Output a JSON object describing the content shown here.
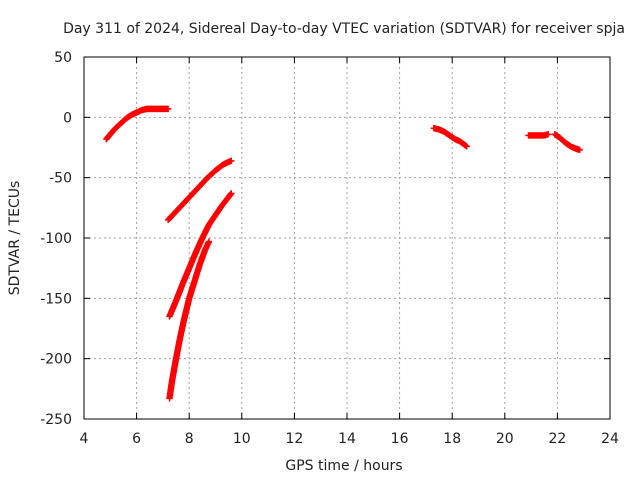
{
  "chart_data": {
    "type": "scatter",
    "title": "Day 311 of 2024, Sidereal Day-to-day VTEC variation (SDTVAR) for receiver spja",
    "xlabel": "GPS time / hours",
    "ylabel": "SDTVAR / TECUs",
    "xlim": [
      4,
      24
    ],
    "ylim": [
      -250,
      50
    ],
    "xticks": [
      4,
      6,
      8,
      10,
      12,
      14,
      16,
      18,
      20,
      22,
      24
    ],
    "yticks": [
      -250,
      -200,
      -150,
      -100,
      -50,
      0,
      50
    ],
    "grid": true,
    "legend": "none",
    "marker": "plus",
    "color": "#ff0000",
    "series": [
      {
        "segments": [
          {
            "x": [
              4.85,
              5.0,
              5.2,
              5.4,
              5.6,
              5.8,
              6.0,
              6.2,
              6.4,
              6.6,
              6.8,
              7.0,
              7.2
            ],
            "y": [
              -18,
              -14,
              -9,
              -5,
              -1,
              2,
              4,
              6,
              7,
              7,
              7,
              7,
              7
            ]
          },
          {
            "x": [
              7.2,
              7.5,
              7.8,
              8.1,
              8.4,
              8.7,
              9.0,
              9.3,
              9.6
            ],
            "y": [
              -85,
              -78,
              -71,
              -64,
              -57,
              -50,
              -44,
              -39,
              -36
            ]
          },
          {
            "x": [
              7.25,
              7.5,
              7.75,
              8.0,
              8.25,
              8.5,
              8.75,
              9.0,
              9.25,
              9.5,
              9.6
            ],
            "y": [
              -165,
              -152,
              -138,
              -125,
              -112,
              -100,
              -89,
              -81,
              -73,
              -66,
              -63
            ]
          },
          {
            "x": [
              7.25,
              7.35,
              7.5,
              7.65,
              7.8,
              8.0,
              8.2,
              8.4,
              8.6,
              8.75
            ],
            "y": [
              -233,
              -218,
              -200,
              -183,
              -168,
              -150,
              -136,
              -122,
              -110,
              -103
            ]
          },
          {
            "x": [
              17.3,
              17.5,
              17.7,
              17.9,
              18.1,
              18.3,
              18.55
            ],
            "y": [
              -9,
              -10,
              -12,
              -15,
              -18,
              -20,
              -24
            ]
          },
          {
            "x": [
              20.9,
              21.1,
              21.3,
              21.5,
              21.65
            ],
            "y": [
              -15,
              -15,
              -15,
              -15,
              -14
            ]
          },
          {
            "x": [
              21.9,
              22.1,
              22.3,
              22.5,
              22.7,
              22.85
            ],
            "y": [
              -14,
              -17,
              -21,
              -24,
              -26,
              -27
            ]
          }
        ]
      }
    ]
  }
}
